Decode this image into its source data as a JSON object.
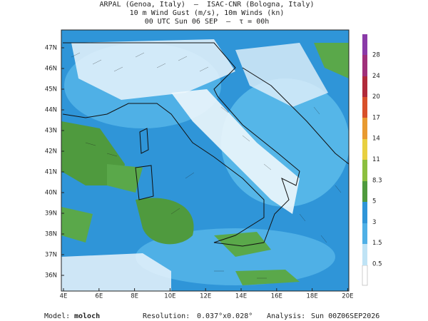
{
  "header": {
    "line1": "ARPAL (Genoa, Italy)  –  ISAC-CNR (Bologna, Italy)",
    "line2": "10 m Wind Gust (m/s), 10m Winds (kn)",
    "line3": "00 UTC Sun 06 SEP  –  τ = 00h"
  },
  "map": {
    "latitudes": [
      "47N",
      "46N",
      "45N",
      "44N",
      "43N",
      "42N",
      "41N",
      "40N",
      "39N",
      "38N",
      "37N",
      "36N"
    ],
    "longitudes": [
      "4E",
      "6E",
      "8E",
      "10E",
      "12E",
      "14E",
      "16E",
      "18E",
      "20E"
    ]
  },
  "colorbar": {
    "ticks": [
      "28",
      "24",
      "20",
      "17",
      "14",
      "11",
      "8.3",
      "5",
      "3",
      "1.5",
      "0.5"
    ]
  },
  "footer": {
    "model_label": "Model:",
    "model": "moloch",
    "resolution_label": "Resolution:",
    "resolution": "0.037°x0.028°",
    "analysis_label": "Analysis:",
    "analysis": "Sun 00Z06SEP2026"
  }
}
